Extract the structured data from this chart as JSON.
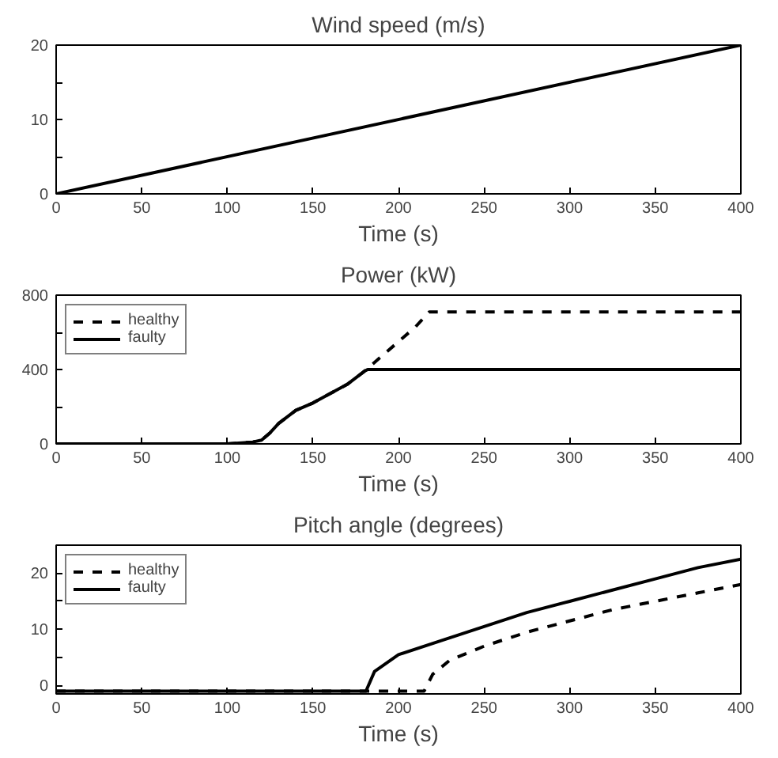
{
  "chart_data": [
    {
      "type": "line",
      "title": "Wind speed (m/s)",
      "xlabel": "Time (s)",
      "xlim": [
        0,
        400
      ],
      "ylim": [
        0,
        20
      ],
      "xticks": [
        0,
        50,
        100,
        150,
        200,
        250,
        300,
        350,
        400
      ],
      "yticks": [
        0,
        {
          "value": 5,
          "label": null
        },
        10,
        {
          "value": 15,
          "label": null
        },
        20
      ],
      "grid": false,
      "legend": false,
      "marker": "none",
      "series": [
        {
          "color": "#000000",
          "line_style": "solid",
          "x": [
            0,
            400
          ],
          "values": [
            0,
            20
          ]
        }
      ]
    },
    {
      "type": "line",
      "title": "Power (kW)",
      "xlabel": "Time (s)",
      "xlim": [
        0,
        400
      ],
      "ylim": [
        0,
        800
      ],
      "xticks": [
        0,
        50,
        100,
        150,
        200,
        250,
        300,
        350,
        400
      ],
      "yticks": [
        0,
        {
          "value": 200,
          "label": null
        },
        400,
        {
          "value": 600,
          "label": null
        },
        800
      ],
      "grid": false,
      "legend": "top left",
      "marker": "none",
      "series": [
        {
          "name": "healthy",
          "color": "#000000",
          "line_style": "dashed",
          "x": [
            0,
            100,
            115,
            120,
            125,
            130,
            140,
            150,
            160,
            170,
            180,
            190,
            200,
            210,
            218,
            400
          ],
          "values": [
            0,
            0,
            10,
            20,
            60,
            110,
            180,
            220,
            270,
            320,
            390,
            470,
            550,
            630,
            710,
            710
          ]
        },
        {
          "name": "faulty",
          "color": "#000000",
          "line_style": "solid",
          "x": [
            0,
            100,
            115,
            120,
            125,
            130,
            140,
            150,
            160,
            170,
            180,
            182,
            400
          ],
          "values": [
            0,
            0,
            10,
            20,
            60,
            110,
            180,
            220,
            270,
            320,
            390,
            400,
            400
          ]
        }
      ]
    },
    {
      "type": "line",
      "title": "Pitch angle (degrees)",
      "xlabel": "Time (s)",
      "xlim": [
        0,
        400
      ],
      "ylim": [
        -1.5,
        25
      ],
      "xticks": [
        0,
        50,
        100,
        150,
        200,
        250,
        300,
        350,
        400
      ],
      "yticks": [
        0,
        {
          "value": 5,
          "label": null
        },
        10,
        {
          "value": 15,
          "label": null
        },
        20
      ],
      "grid": false,
      "legend": "top left",
      "marker": "none",
      "series": [
        {
          "name": "healthy",
          "color": "#000000",
          "line_style": "dashed",
          "x": [
            0,
            215,
            220,
            230,
            250,
            275,
            300,
            325,
            350,
            375,
            400
          ],
          "values": [
            -1,
            -1,
            2,
            4.5,
            7,
            9.5,
            11.5,
            13.5,
            15,
            16.5,
            18
          ]
        },
        {
          "name": "faulty",
          "color": "#000000",
          "line_style": "solid",
          "x": [
            0,
            181,
            186,
            200,
            225,
            250,
            275,
            300,
            325,
            350,
            375,
            400
          ],
          "values": [
            -1,
            -1,
            2.5,
            5.5,
            8,
            10.5,
            13,
            15,
            17,
            19,
            21,
            22.5
          ]
        }
      ]
    }
  ]
}
